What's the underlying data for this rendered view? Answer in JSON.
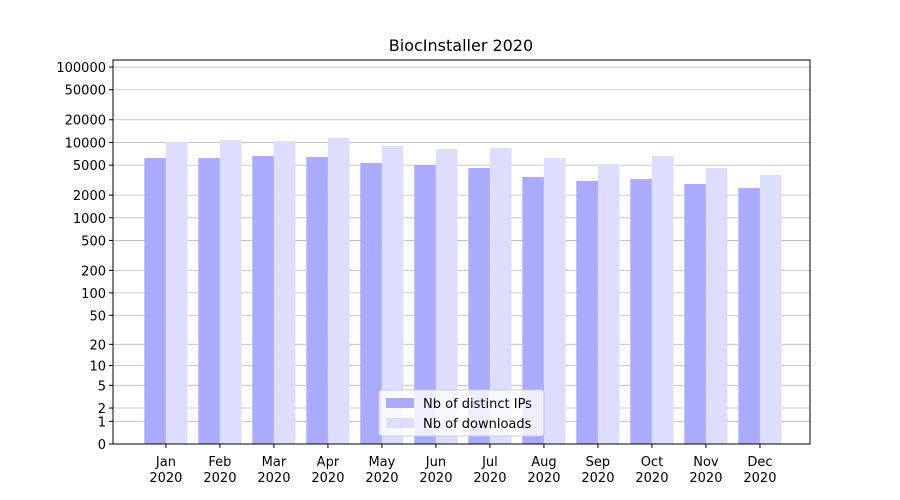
{
  "chart_data": {
    "type": "bar",
    "title": "BiocInstaller 2020",
    "categories": [
      "Jan\n2020",
      "Feb\n2020",
      "Mar\n2020",
      "Apr\n2020",
      "May\n2020",
      "Jun\n2020",
      "Jul\n2020",
      "Aug\n2020",
      "Sep\n2020",
      "Oct\n2020",
      "Nov\n2020",
      "Dec\n2020"
    ],
    "series": [
      {
        "name": "Nb of distinct IPs",
        "color": "#aaaaff",
        "values": [
          6210,
          6200,
          6600,
          6400,
          5330,
          5000,
          4580,
          3480,
          3080,
          3260,
          2810,
          2480
        ]
      },
      {
        "name": "Nb of downloads",
        "color": "#ddddff",
        "values": [
          10120,
          10760,
          10400,
          11430,
          8960,
          8170,
          8400,
          6200,
          5170,
          6600,
          4580,
          3700
        ]
      }
    ],
    "yscale": "log1p",
    "ylim": [
      0,
      124000
    ],
    "yticks": [
      0,
      1,
      2,
      5,
      10,
      20,
      50,
      100,
      200,
      500,
      1000,
      2000,
      5000,
      10000,
      20000,
      50000,
      100000
    ],
    "grid": true,
    "legend": "lower center"
  }
}
